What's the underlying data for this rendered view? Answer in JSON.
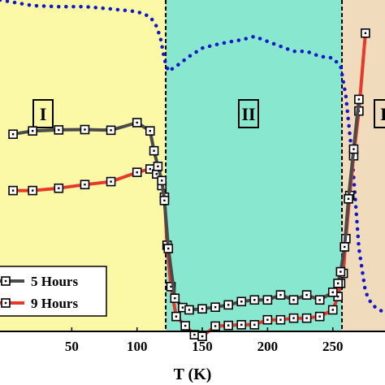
{
  "chart_data": {
    "type": "line",
    "title": "",
    "xlabel": "T (K)",
    "ylabel": "",
    "xlim": [
      -5,
      290
    ],
    "ylim": [
      0,
      100
    ],
    "x_ticks": [
      50,
      100,
      150,
      200,
      250
    ],
    "grid": false,
    "legend_position": "bottom-left",
    "regions": [
      {
        "label": "I",
        "x_start": -5,
        "x_end": 122,
        "color": "#fbf8a6"
      },
      {
        "label": "II",
        "x_start": 122,
        "x_end": 257,
        "color": "#88e8cf"
      },
      {
        "label": "I",
        "x_start": 257,
        "x_end": 290,
        "color": "#f0dcbc"
      }
    ],
    "region_boundaries": [
      122,
      257
    ],
    "series": [
      {
        "name": "5 Hours",
        "color": "#4a4a4a",
        "marker": "square",
        "points": [
          [
            5,
            59.5
          ],
          [
            20,
            60.5
          ],
          [
            40,
            60.8
          ],
          [
            60,
            60.9
          ],
          [
            80,
            60.7
          ],
          [
            100,
            63.0
          ],
          [
            110,
            60.5
          ],
          [
            113,
            54.5
          ],
          [
            116,
            49.8
          ],
          [
            119,
            45.5
          ],
          [
            121,
            39.5
          ],
          [
            124,
            25.0
          ],
          [
            129,
            10.0
          ],
          [
            135,
            7.2
          ],
          [
            140,
            6.5
          ],
          [
            150,
            6.8
          ],
          [
            160,
            7.3
          ],
          [
            170,
            8.0
          ],
          [
            180,
            9.0
          ],
          [
            190,
            9.5
          ],
          [
            200,
            9.5
          ],
          [
            210,
            11.0
          ],
          [
            220,
            9.5
          ],
          [
            230,
            11.0
          ],
          [
            240,
            9.5
          ],
          [
            250,
            11.8
          ],
          [
            254,
            14.5
          ],
          [
            256,
            18.0
          ],
          [
            259,
            25.5
          ],
          [
            262,
            40.0
          ],
          [
            266,
            55.0
          ],
          [
            270,
            70.0
          ]
        ]
      },
      {
        "name": "9 Hours",
        "color": "#e8382a",
        "marker": "square",
        "points": [
          [
            5,
            42.5
          ],
          [
            20,
            42.5
          ],
          [
            40,
            43.2
          ],
          [
            60,
            44.3
          ],
          [
            80,
            45.2
          ],
          [
            100,
            48.0
          ],
          [
            110,
            49.0
          ],
          [
            115,
            47.5
          ],
          [
            119,
            44.0
          ],
          [
            121,
            40.5
          ],
          [
            123,
            26.0
          ],
          [
            126,
            13.5
          ],
          [
            130,
            4.5
          ],
          [
            137,
            1.7
          ],
          [
            144,
            -1.0
          ],
          [
            150,
            -1.5
          ],
          [
            160,
            1.6
          ],
          [
            170,
            1.8
          ],
          [
            180,
            2.0
          ],
          [
            190,
            2.0
          ],
          [
            200,
            3.5
          ],
          [
            210,
            3.5
          ],
          [
            220,
            4.0
          ],
          [
            230,
            4.0
          ],
          [
            240,
            4.5
          ],
          [
            250,
            6.5
          ],
          [
            254,
            10.5
          ],
          [
            256,
            14.5
          ],
          [
            258,
            17.5
          ],
          [
            260,
            28.0
          ],
          [
            263,
            41.0
          ],
          [
            266,
            53.0
          ],
          [
            270,
            66.5
          ],
          [
            275,
            90.0
          ]
        ]
      },
      {
        "name": "",
        "color": "#1218c8",
        "style": "dotted",
        "points": [
          [
            -5,
            100
          ],
          [
            20,
            98.3
          ],
          [
            40,
            98.0
          ],
          [
            60,
            98.0
          ],
          [
            80,
            97.3
          ],
          [
            100,
            96.5
          ],
          [
            110,
            95.0
          ],
          [
            115,
            92.0
          ],
          [
            118,
            88.5
          ],
          [
            121,
            82.0
          ],
          [
            124,
            78.5
          ],
          [
            130,
            80.0
          ],
          [
            140,
            83.0
          ],
          [
            150,
            85.5
          ],
          [
            160,
            86.5
          ],
          [
            170,
            87.3
          ],
          [
            180,
            88.0
          ],
          [
            190,
            89.0
          ],
          [
            200,
            87.5
          ],
          [
            210,
            86.0
          ],
          [
            220,
            84.5
          ],
          [
            230,
            84.5
          ],
          [
            240,
            83.0
          ],
          [
            250,
            82.5
          ],
          [
            256,
            80.0
          ],
          [
            260,
            71.0
          ],
          [
            265,
            52.0
          ],
          [
            270,
            25.0
          ],
          [
            275,
            12.0
          ],
          [
            280,
            8.0
          ],
          [
            290,
            5.5
          ]
        ]
      }
    ]
  }
}
